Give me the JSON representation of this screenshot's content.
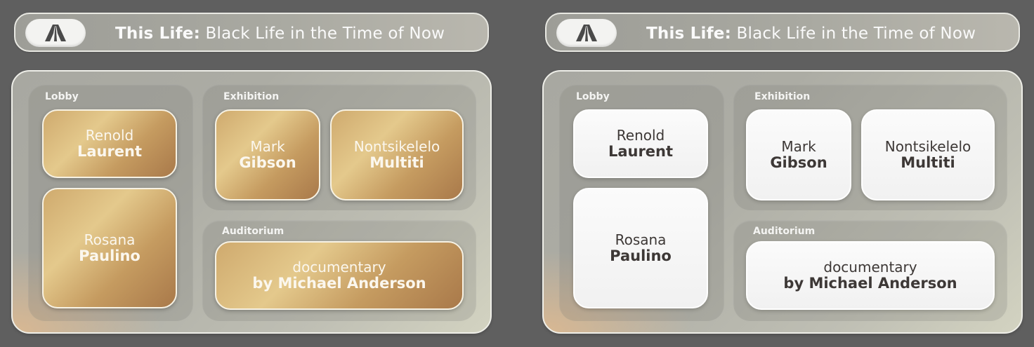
{
  "panels": [
    {
      "variant": "gold",
      "title_bold": "This Life:",
      "title_rest": " Black Life in the Time of Now",
      "zones": {
        "lobby": "Lobby",
        "exhibition": "Exhibition",
        "auditorium": "Auditorium"
      },
      "cards": {
        "renold": {
          "first": "Renold",
          "last": "Laurent"
        },
        "rosana": {
          "first": "Rosana",
          "last": "Paulino"
        },
        "mark": {
          "first": "Mark",
          "last": "Gibson"
        },
        "nontsikelelo": {
          "first": "Nontsikelelo",
          "last": "Multiti"
        },
        "documentary": {
          "first": "documentary",
          "last": "by Michael Anderson"
        }
      }
    },
    {
      "variant": "white",
      "title_bold": "This Life:",
      "title_rest": " Black Life in the Time of Now",
      "zones": {
        "lobby": "Lobby",
        "exhibition": "Exhibition",
        "auditorium": "Auditorium"
      },
      "cards": {
        "renold": {
          "first": "Renold",
          "last": "Laurent"
        },
        "rosana": {
          "first": "Rosana",
          "last": "Paulino"
        },
        "mark": {
          "first": "Mark",
          "last": "Gibson"
        },
        "nontsikelelo": {
          "first": "Nontsikelelo",
          "last": "Multiti"
        },
        "documentary": {
          "first": "documentary",
          "last": "by Michael Anderson"
        }
      }
    }
  ],
  "colors": {
    "background": "#5f5f5f",
    "gold_card": "#c9a56b",
    "white_card": "#f7f7f7",
    "white_card_text": "#3d3836"
  },
  "icons": {
    "logo": "road-perspective-icon"
  }
}
